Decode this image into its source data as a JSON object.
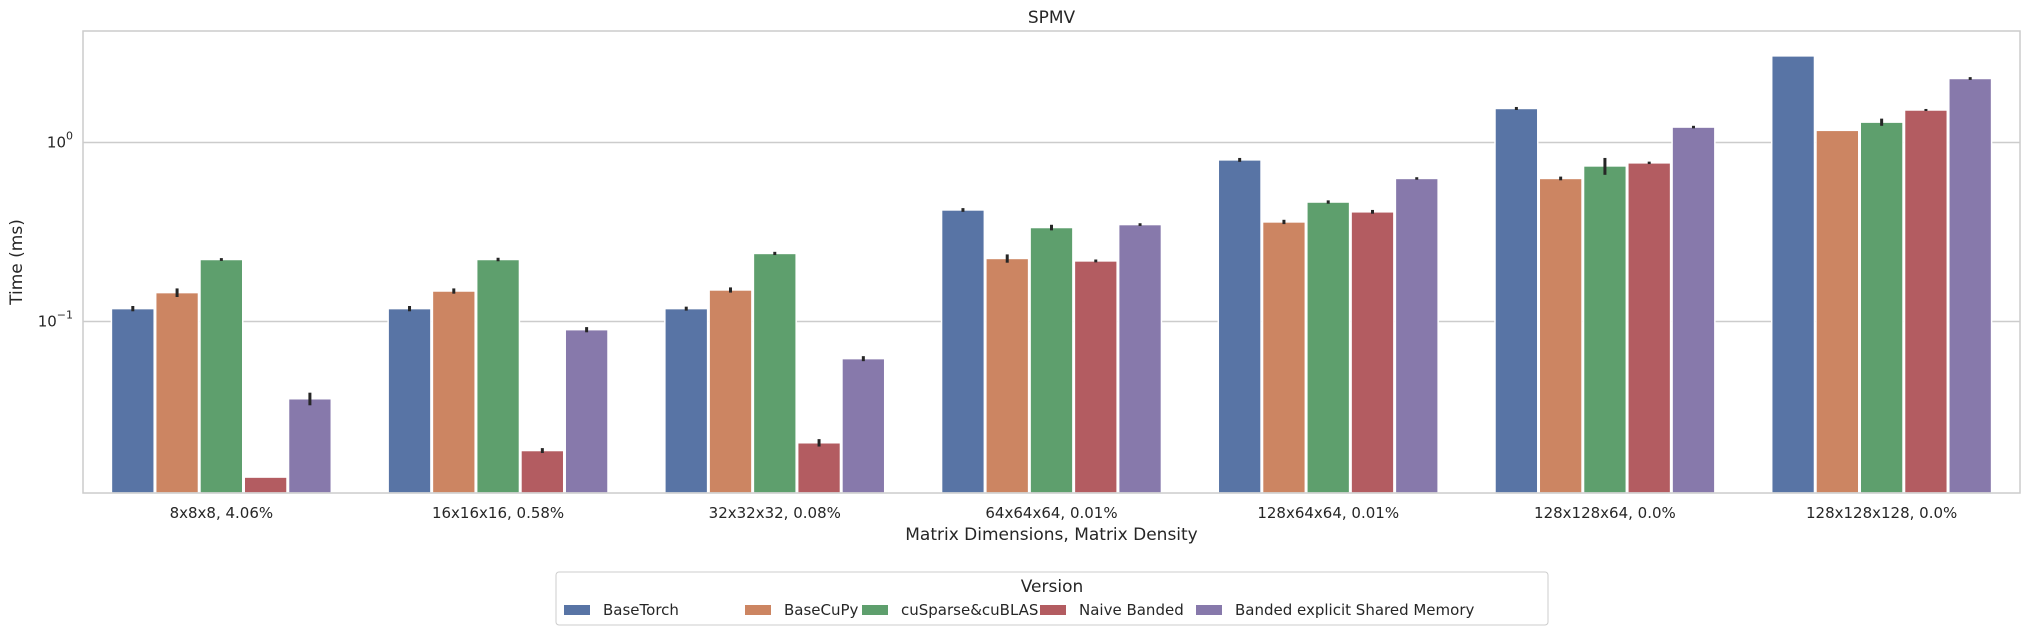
{
  "chart_data": {
    "type": "bar",
    "title": "SPMV",
    "xlabel": "Matrix Dimensions, Matrix Density",
    "ylabel": "Time (ms)",
    "y_scale": "log",
    "ylim": [
      0.011,
      4.2
    ],
    "yticks": [
      {
        "value": 0.1,
        "base": "10",
        "exp": "−1"
      },
      {
        "value": 1,
        "base": "10",
        "exp": "0"
      }
    ],
    "grid": "horizontal",
    "categories": [
      "8x8x8, 4.06%",
      "16x16x16, 0.58%",
      "32x32x32, 0.08%",
      "64x64x64, 0.01%",
      "128x64x64, 0.01%",
      "128x128x64, 0.0%",
      "128x128x128, 0.0%"
    ],
    "series": [
      {
        "name": "BaseTorch",
        "color": "#5874a5",
        "values": [
          0.118,
          0.118,
          0.118,
          0.42,
          0.8,
          1.55,
          3.05
        ],
        "errors": [
          0.004,
          0.004,
          0.003,
          0.01,
          0.02,
          0.03,
          0
        ]
      },
      {
        "name": "BaseCuPy",
        "color": "#cc8562",
        "values": [
          0.145,
          0.148,
          0.15,
          0.225,
          0.36,
          0.63,
          1.17
        ],
        "errors": [
          0.008,
          0.005,
          0.005,
          0.012,
          0.01,
          0.015,
          0
        ]
      },
      {
        "name": "cuSparse&cuBLAS",
        "color": "#5e9f6d",
        "values": [
          0.222,
          0.222,
          0.24,
          0.335,
          0.465,
          0.74,
          1.3
        ],
        "errors": [
          0.004,
          0.005,
          0.005,
          0.012,
          0.01,
          0.08,
          0.06
        ]
      },
      {
        "name": "Naive Banded",
        "color": "#b35c61",
        "values": [
          0.0135,
          0.019,
          0.021,
          0.218,
          0.41,
          0.77,
          1.52
        ],
        "errors": [
          0,
          0.0006,
          0.001,
          0.004,
          0.01,
          0.012,
          0.02
        ]
      },
      {
        "name": "Banded explicit Shared Memory",
        "color": "#8779ab",
        "values": [
          0.037,
          0.09,
          0.062,
          0.348,
          0.63,
          1.22,
          2.28
        ],
        "errors": [
          0.003,
          0.003,
          0.002,
          0.006,
          0.01,
          0.02,
          0.04
        ]
      }
    ],
    "legend": {
      "title": "Version",
      "placement": "bottom-center"
    }
  }
}
